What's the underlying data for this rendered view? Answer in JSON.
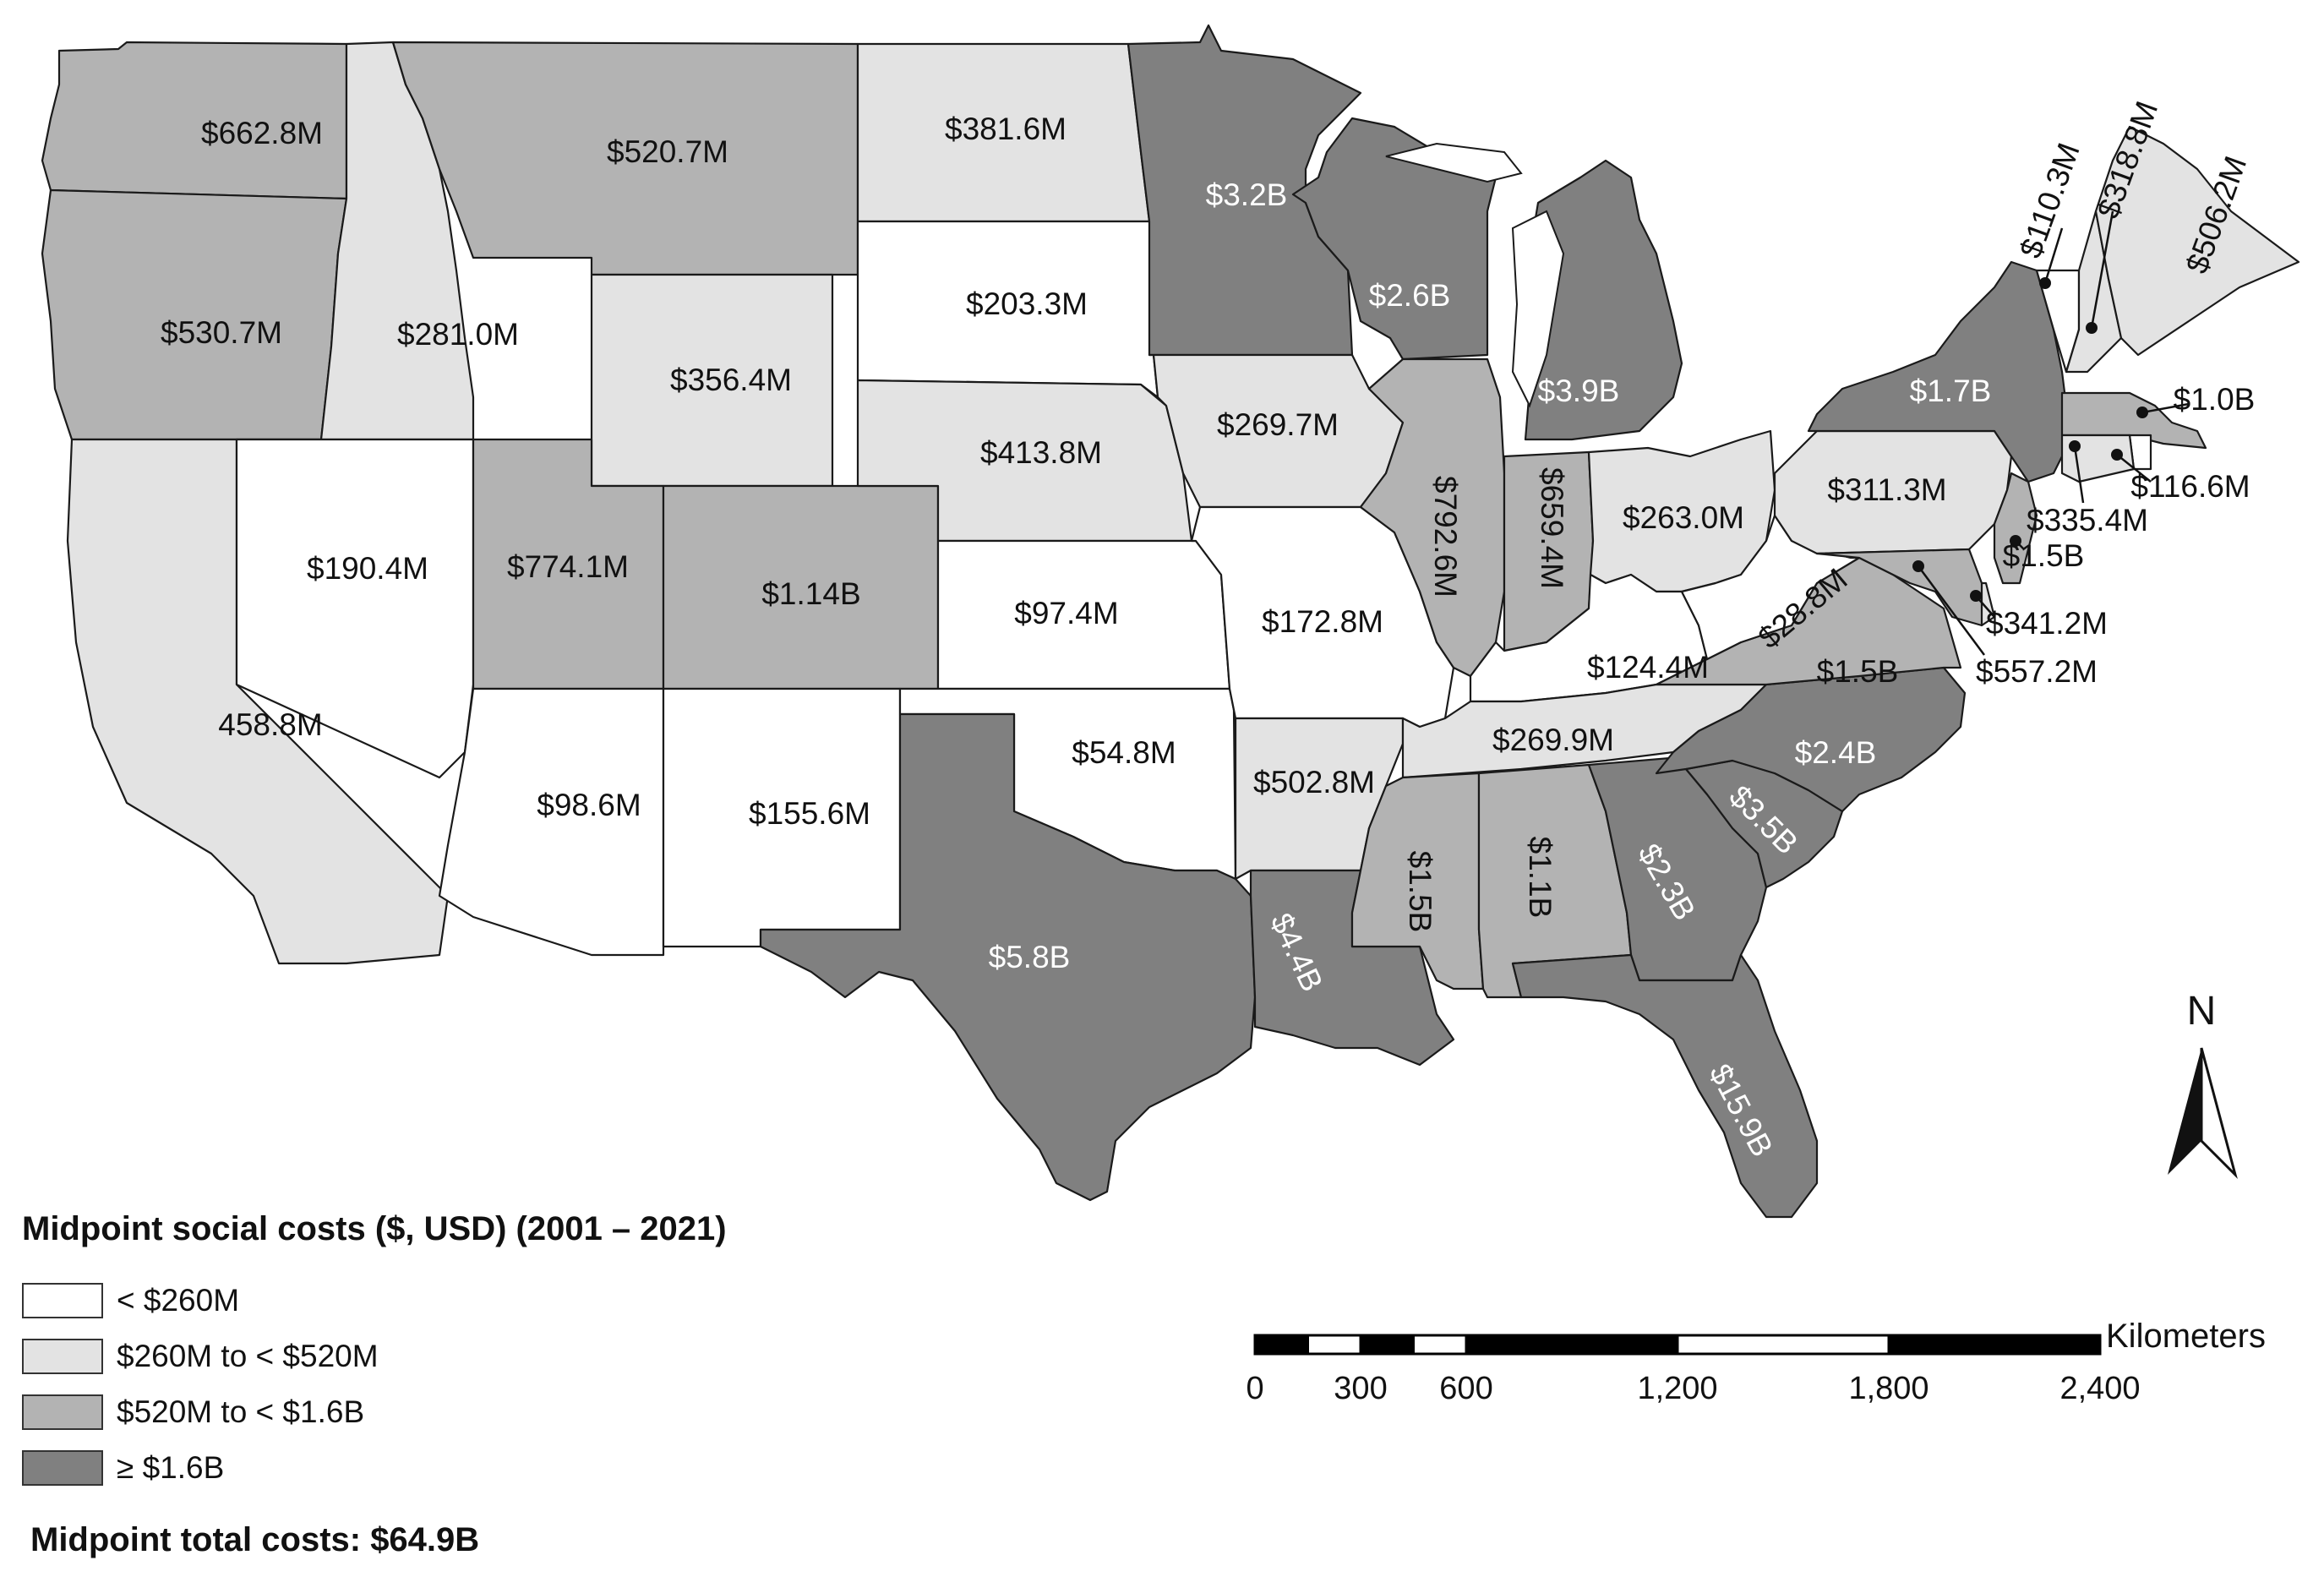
{
  "legend": {
    "title": "Midpoint social costs ($, USD) (2001 –  2021)",
    "classes": [
      {
        "label": "< $260M",
        "color": "#ffffff"
      },
      {
        "label": "$260M to < $520M",
        "color": "#e3e3e3"
      },
      {
        "label": "$520M to < $1.6B",
        "color": "#b3b3b3"
      },
      {
        "label": "≥ $1.6B",
        "color": "#808080"
      }
    ]
  },
  "total": "Midpoint total costs: $64.9B",
  "scale_bar": {
    "unit": "Kilometers",
    "ticks": [
      "0",
      "300",
      "600",
      "1,200",
      "1,800",
      "2,400"
    ]
  },
  "north_arrow": {
    "label": "N",
    "icon": "north-arrow-icon"
  },
  "states": [
    {
      "id": "WA",
      "label": "$662.8M",
      "cls": 2
    },
    {
      "id": "OR",
      "label": "$530.7M",
      "cls": 2
    },
    {
      "id": "CA",
      "label": "458.8M",
      "cls": 1
    },
    {
      "id": "ID",
      "label": "$281.0M",
      "cls": 1
    },
    {
      "id": "NV",
      "label": "$190.4M",
      "cls": 0
    },
    {
      "id": "MT",
      "label": "$520.7M",
      "cls": 2
    },
    {
      "id": "WY",
      "label": "$356.4M",
      "cls": 1
    },
    {
      "id": "UT",
      "label": "$774.1M",
      "cls": 2
    },
    {
      "id": "CO",
      "label": "$1.14B",
      "cls": 2
    },
    {
      "id": "AZ",
      "label": "$98.6M",
      "cls": 0
    },
    {
      "id": "NM",
      "label": "$155.6M",
      "cls": 0
    },
    {
      "id": "ND",
      "label": "$381.6M",
      "cls": 1
    },
    {
      "id": "SD",
      "label": "$203.3M",
      "cls": 0
    },
    {
      "id": "NE",
      "label": "$413.8M",
      "cls": 1
    },
    {
      "id": "KS",
      "label": "$97.4M",
      "cls": 0
    },
    {
      "id": "OK",
      "label": "$54.8M",
      "cls": 0
    },
    {
      "id": "TX",
      "label": "$5.8B",
      "cls": 3
    },
    {
      "id": "MN",
      "label": "$3.2B",
      "cls": 3
    },
    {
      "id": "IA",
      "label": "$269.7M",
      "cls": 1
    },
    {
      "id": "MO",
      "label": "$172.8M",
      "cls": 0
    },
    {
      "id": "AR",
      "label": "$502.8M",
      "cls": 1
    },
    {
      "id": "LA",
      "label": "$4.4B",
      "cls": 3
    },
    {
      "id": "WI",
      "label": "$2.6B",
      "cls": 3
    },
    {
      "id": "IL",
      "label": "$792.6M",
      "cls": 2
    },
    {
      "id": "MI",
      "label": "$3.9B",
      "cls": 3
    },
    {
      "id": "IN",
      "label": "$659.4M",
      "cls": 2
    },
    {
      "id": "OH",
      "label": "$263.0M",
      "cls": 1
    },
    {
      "id": "KY",
      "label": "$124.4M",
      "cls": 0
    },
    {
      "id": "TN",
      "label": "$269.9M",
      "cls": 1
    },
    {
      "id": "MS",
      "label": "$1.5B",
      "cls": 2
    },
    {
      "id": "AL",
      "label": "$1.1B",
      "cls": 2
    },
    {
      "id": "GA",
      "label": "$2.3B",
      "cls": 3
    },
    {
      "id": "FL",
      "label": "$15.9B",
      "cls": 3
    },
    {
      "id": "SC",
      "label": "$3.5B",
      "cls": 3
    },
    {
      "id": "NC",
      "label": "$2.4B",
      "cls": 3
    },
    {
      "id": "VA",
      "label": "$1.5B",
      "cls": 2
    },
    {
      "id": "WV",
      "label": "$28.8M",
      "cls": 0
    },
    {
      "id": "PA",
      "label": "$311.3M",
      "cls": 1
    },
    {
      "id": "NY",
      "label": "$1.7B",
      "cls": 3
    },
    {
      "id": "VT",
      "label": "$110.3M",
      "cls": 0
    },
    {
      "id": "NH",
      "label": "$318.8M",
      "cls": 1
    },
    {
      "id": "ME",
      "label": "$506.2M",
      "cls": 1
    },
    {
      "id": "MA",
      "label": "$1.0B",
      "cls": 2
    },
    {
      "id": "RI",
      "label": "$116.6M",
      "cls": 0
    },
    {
      "id": "CT",
      "label": "$335.4M",
      "cls": 1
    },
    {
      "id": "NJ",
      "label": "$1.5B",
      "cls": 2
    },
    {
      "id": "DE",
      "label": "$341.2M",
      "cls": 1
    },
    {
      "id": "MD",
      "label": "$557.2M",
      "cls": 2
    }
  ]
}
